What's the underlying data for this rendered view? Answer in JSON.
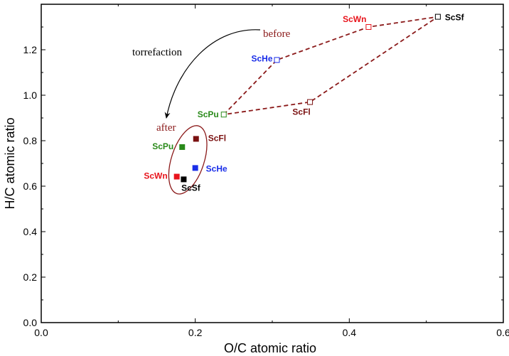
{
  "chart_data": {
    "type": "scatter",
    "title": "",
    "xlabel": "O/C atomic ratio",
    "ylabel": "H/C atomic ratio",
    "xlim": [
      0.0,
      0.6
    ],
    "ylim": [
      0.0,
      1.4
    ],
    "xticks": [
      "0.0",
      "0.2",
      "0.4",
      "0.6"
    ],
    "yticks": [
      "0.0",
      "0.2",
      "0.4",
      "0.6",
      "0.8",
      "1.0",
      "1.2"
    ],
    "grid": false,
    "series": [
      {
        "name": "before",
        "marker": "open-square",
        "points": [
          {
            "label": "ScSf",
            "x": 0.515,
            "y": 1.345,
            "color": "#000000"
          },
          {
            "label": "ScWn",
            "x": 0.425,
            "y": 1.3,
            "color": "#e8141c"
          },
          {
            "label": "ScHe",
            "x": 0.306,
            "y": 1.155,
            "color": "#1a2ee8"
          },
          {
            "label": "ScFl",
            "x": 0.349,
            "y": 0.97,
            "color": "#7a1010"
          },
          {
            "label": "ScPu",
            "x": 0.237,
            "y": 0.915,
            "color": "#2a8a1a"
          }
        ],
        "outline_order": [
          "ScPu",
          "ScHe",
          "ScWn",
          "ScSf",
          "ScFl",
          "ScPu"
        ],
        "outline_color": "#8b1a1a"
      },
      {
        "name": "after",
        "marker": "filled-square",
        "points": [
          {
            "label": "ScFl",
            "x": 0.201,
            "y": 0.808,
            "color": "#7a1010"
          },
          {
            "label": "ScPu",
            "x": 0.183,
            "y": 0.772,
            "color": "#2a8a1a"
          },
          {
            "label": "ScHe",
            "x": 0.2,
            "y": 0.68,
            "color": "#1a2ee8"
          },
          {
            "label": "ScWn",
            "x": 0.176,
            "y": 0.642,
            "color": "#e8141c"
          },
          {
            "label": "ScSf",
            "x": 0.185,
            "y": 0.63,
            "color": "#000000"
          }
        ],
        "ellipse_color": "#8b1a1a"
      }
    ],
    "annotations": {
      "before": "before",
      "after": "after",
      "process": "torrefaction"
    }
  }
}
